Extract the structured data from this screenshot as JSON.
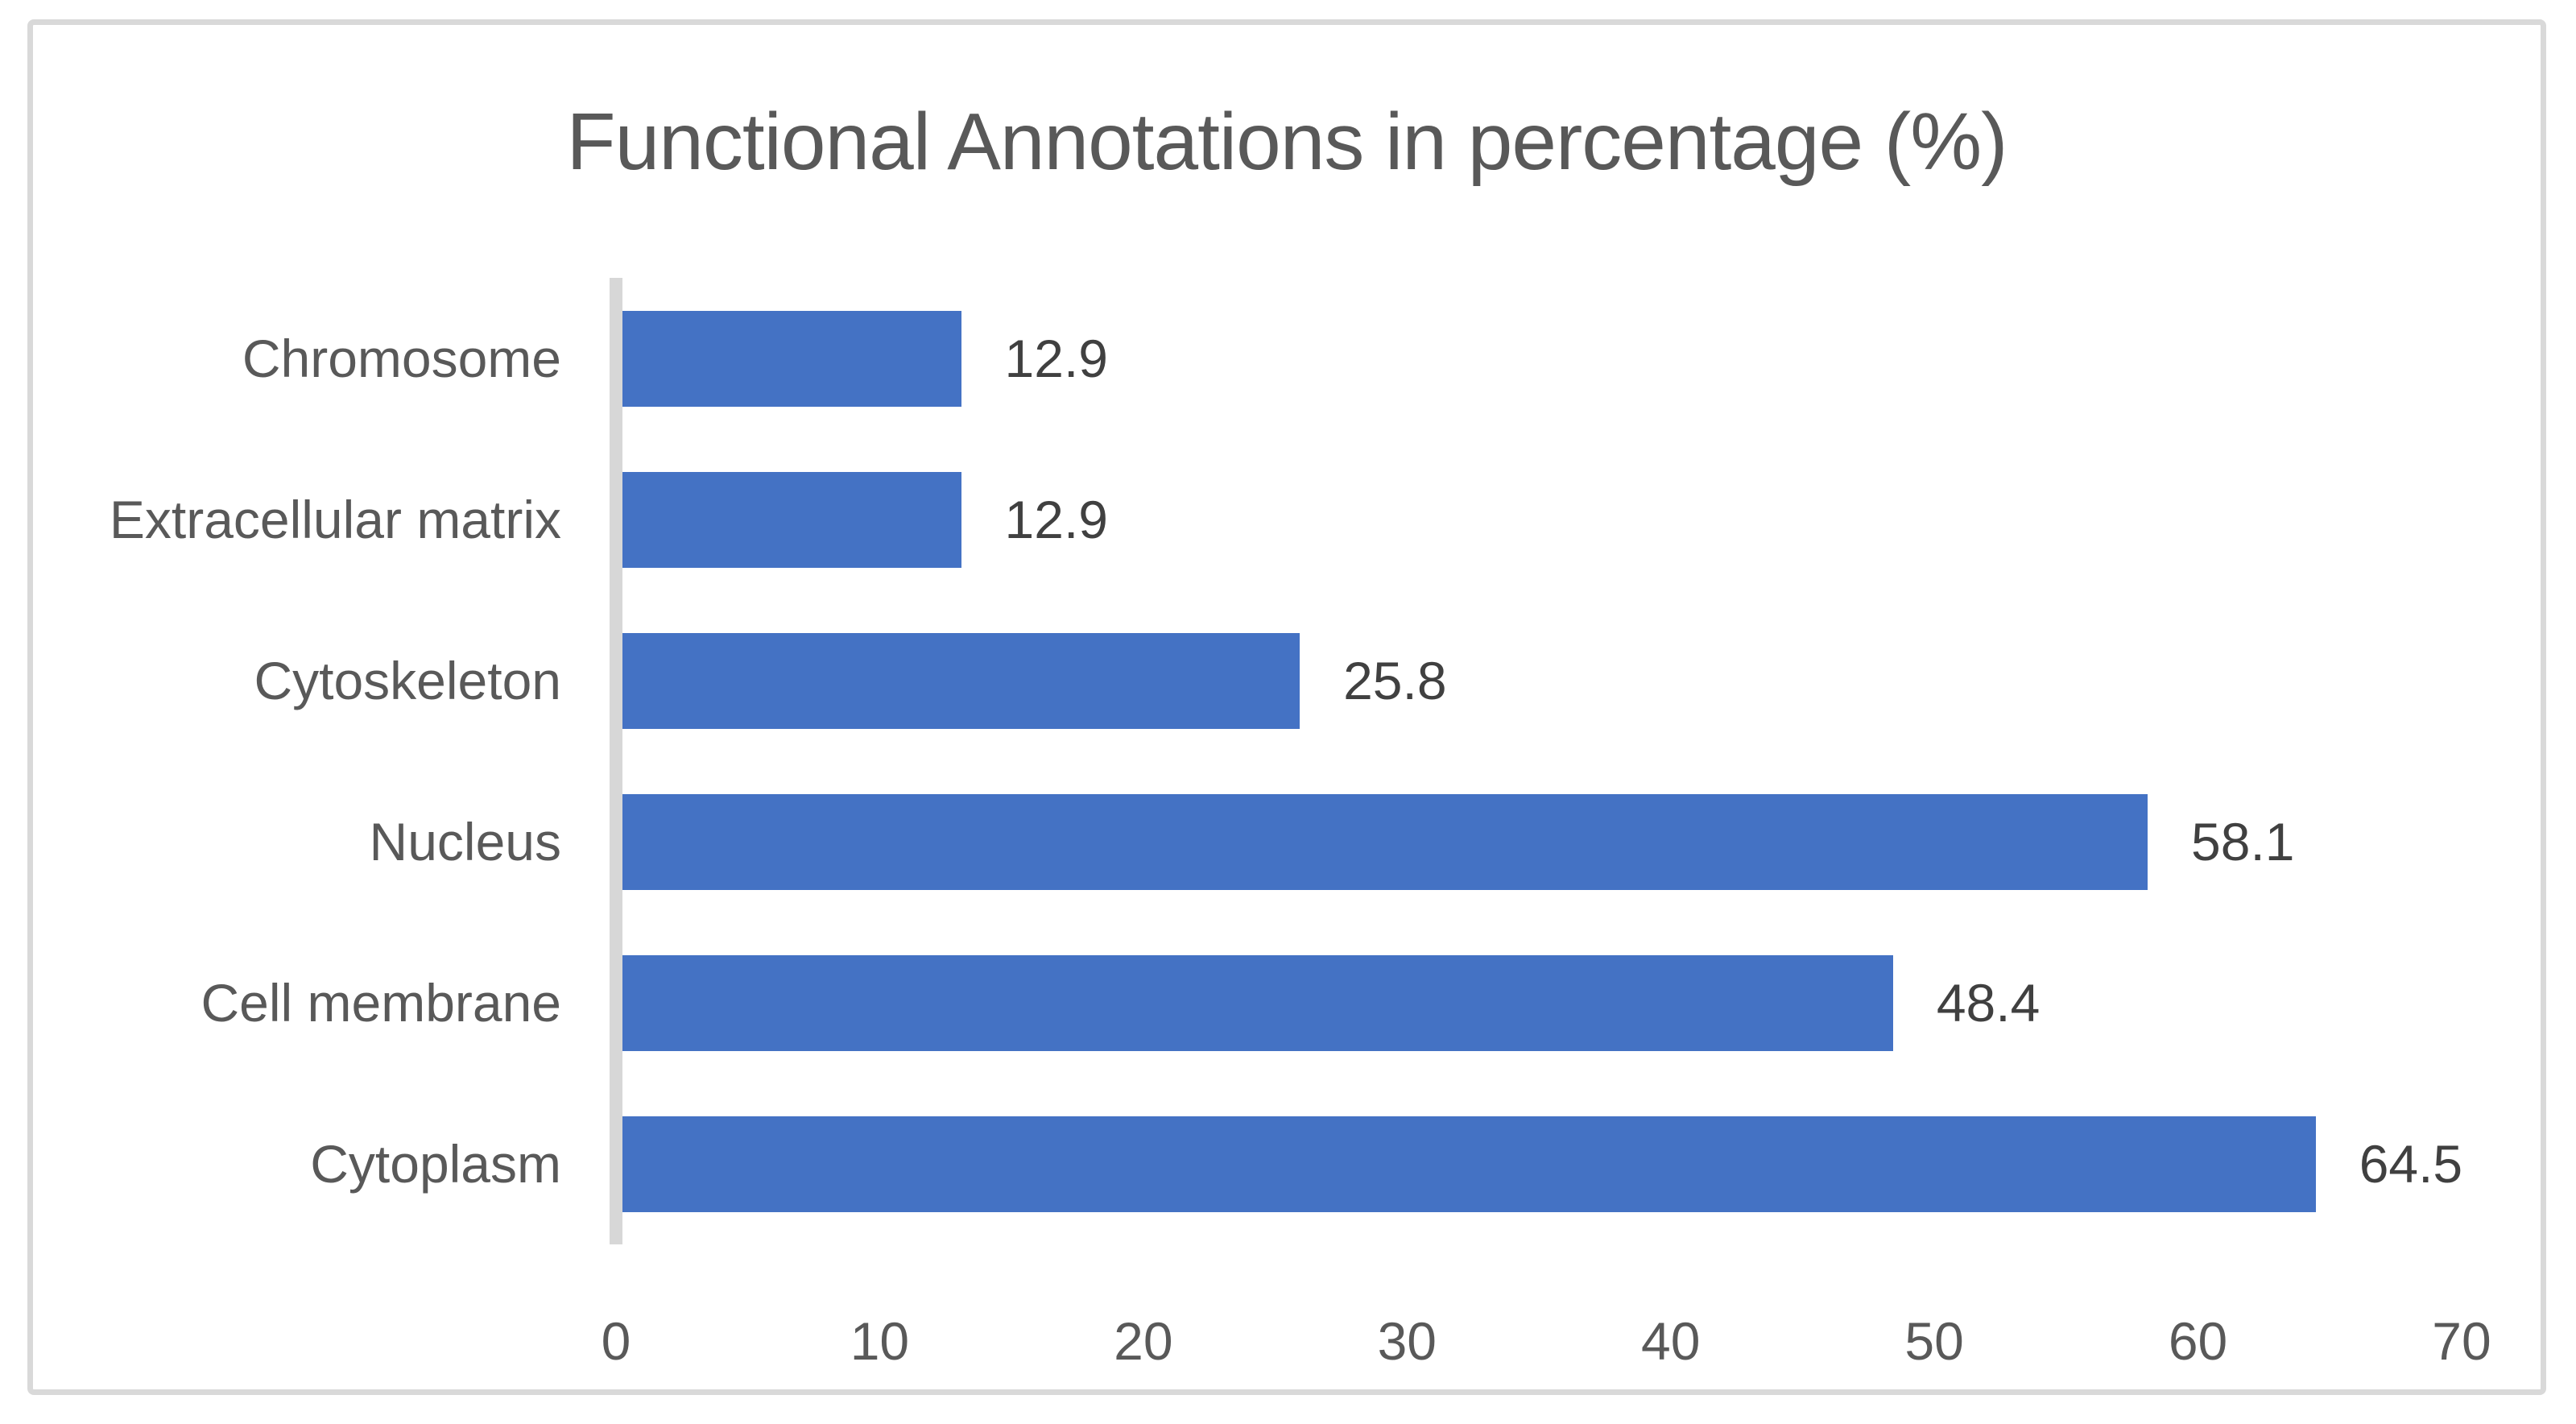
{
  "chart_data": {
    "type": "bar",
    "orientation": "horizontal",
    "title": "Functional Annotations in percentage (%)",
    "categories": [
      "Chromosome",
      "Extracellular matrix",
      "Cytoskeleton",
      "Nucleus",
      "Cell membrane",
      "Cytoplasm"
    ],
    "values": [
      12.9,
      12.9,
      25.8,
      58.1,
      48.4,
      64.5
    ],
    "value_labels": [
      "12.9",
      "12.9",
      "25.8",
      "58.1",
      "48.4",
      "64.5"
    ],
    "category_order_note": "listed top-to-bottom as displayed",
    "xlabel": "",
    "ylabel": "",
    "xlim": [
      0,
      70
    ],
    "x_ticks": [
      0,
      10,
      20,
      30,
      40,
      50,
      60,
      70
    ],
    "grid": "off",
    "legend": "none",
    "data_labels": "outside-end",
    "colors": {
      "bar": "#4472C4",
      "title_text": "#595959",
      "axis_text": "#595959",
      "data_label_text": "#404040",
      "axis_line": "#D7D7D7",
      "frame_border": "#D9D9D9",
      "background": "#FFFFFF"
    }
  }
}
